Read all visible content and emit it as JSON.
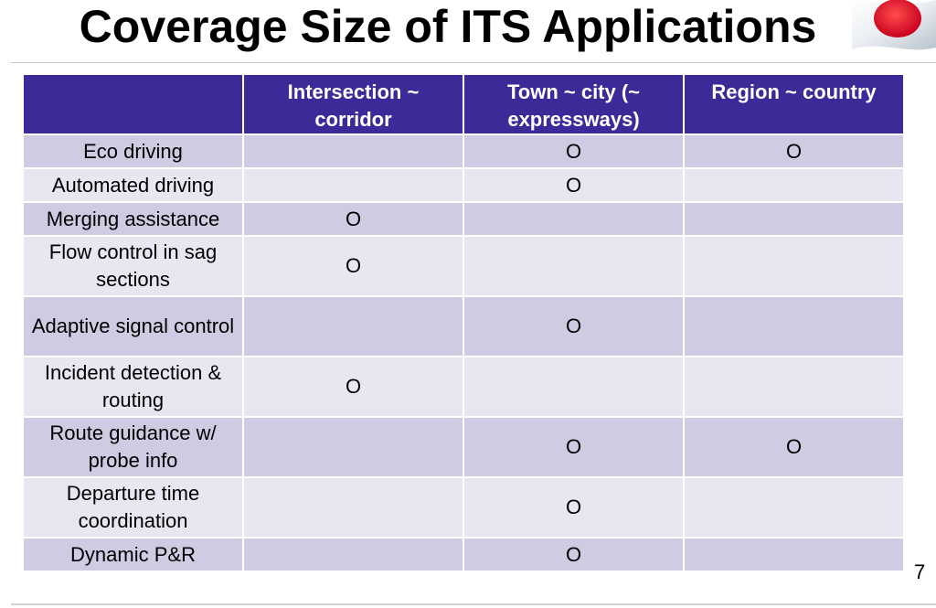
{
  "slide": {
    "title": "Coverage Size of ITS Applications",
    "page_number": "7",
    "flag_icon": "japan-flag-icon"
  },
  "table": {
    "columns": [
      "",
      "Intersection ~ corridor",
      "Town ~ city (~ expressways)",
      "Region ~ country"
    ],
    "rows": [
      {
        "label": "Eco driving",
        "cells": [
          "",
          "O",
          "O"
        ]
      },
      {
        "label": "Automated driving",
        "cells": [
          "",
          "O",
          ""
        ]
      },
      {
        "label": "Merging assistance",
        "cells": [
          "O",
          "",
          ""
        ]
      },
      {
        "label": "Flow control in sag sections",
        "cells": [
          "O",
          "",
          ""
        ]
      },
      {
        "label": "Adaptive signal control",
        "cells": [
          "",
          "O",
          ""
        ]
      },
      {
        "label": "Incident detection & routing",
        "cells": [
          "O",
          "",
          ""
        ]
      },
      {
        "label": "Route guidance w/ probe info",
        "cells": [
          "",
          "O",
          "O"
        ]
      },
      {
        "label": "Departure time coordination",
        "cells": [
          "",
          "O",
          ""
        ]
      },
      {
        "label": "Dynamic P&R",
        "cells": [
          "",
          "O",
          ""
        ]
      }
    ]
  },
  "colors": {
    "header_bg": "#3b2a98",
    "row_dark": "#cfcbe2",
    "row_light": "#e8e7f1"
  }
}
